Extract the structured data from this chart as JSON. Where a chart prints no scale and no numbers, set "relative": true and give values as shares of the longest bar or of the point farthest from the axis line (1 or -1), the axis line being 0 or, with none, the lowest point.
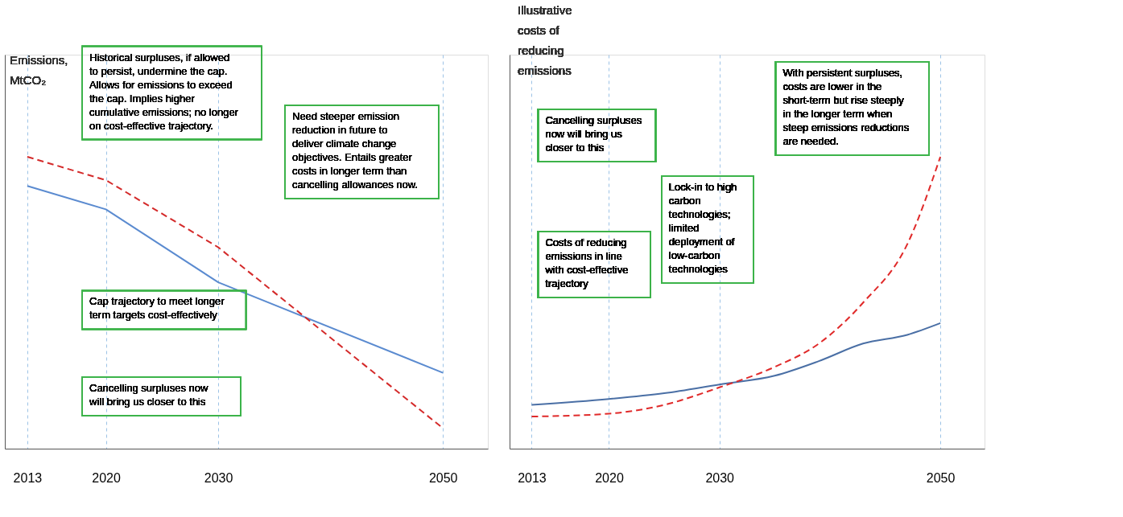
{
  "chart_data": [
    {
      "type": "line",
      "ylabel": "Emissions, MtCO₂",
      "relative": true,
      "grid": "x",
      "xlim": [
        2011,
        2054
      ],
      "xticks": [
        2013,
        2020,
        2030,
        2050
      ],
      "x": [
        2013,
        2020,
        2030,
        2050
      ],
      "series": [
        {
          "color": "#5b8bd0",
          "line_style": "solid",
          "values": [
            0.9,
            0.82,
            0.57,
            0.26
          ]
        },
        {
          "color": "#d42a2a",
          "line_style": "dashed",
          "values": [
            1,
            0.92,
            0.69,
            0.07
          ]
        }
      ],
      "annotations": [
        "Historical surpluses, if allowed to persist, undermine the cap. Allows for emissions to exceed the cap. Implies higher cumulative emissions; no longer on cost-effective trajectory.",
        "Need steeper emission reduction in future to deliver climate change objectives. Entails greater costs in longer term than cancelling allowances now.",
        "Cap trajectory to meet longer term targets cost-effectively",
        "Cancelling surpluses now will bring us closer to this"
      ]
    },
    {
      "type": "line",
      "ylabel": "Illustrative costs of reducing emissions",
      "relative": true,
      "grid": "x",
      "xlim": [
        2011,
        2054
      ],
      "xticks": [
        2013,
        2020,
        2030,
        2050
      ],
      "x": [
        2013,
        2020,
        2025,
        2030,
        2035,
        2039,
        2043,
        2047,
        2050
      ],
      "series": [
        {
          "color": "#4a6fa5",
          "line_style": "solid",
          "values": [
            0.15,
            0.17,
            0.19,
            0.22,
            0.25,
            0.3,
            0.36,
            0.39,
            0.43
          ]
        },
        {
          "color": "#e02a2a",
          "line_style": "dashed",
          "values": [
            0.11,
            0.12,
            0.15,
            0.21,
            0.28,
            0.36,
            0.5,
            0.7,
            1.0
          ]
        }
      ],
      "annotations": [
        "Cancelling surpluses now will bring us closer to this",
        "Costs of reducing emissions in line with cost-effective trajectory",
        "Lock-in to high carbon technologies; limited deployment of low-carbon technologies",
        "With persistent surpluses, costs are lower in the short-term but rise steeply in the longer term when steep emissions reductions are needed."
      ]
    }
  ]
}
